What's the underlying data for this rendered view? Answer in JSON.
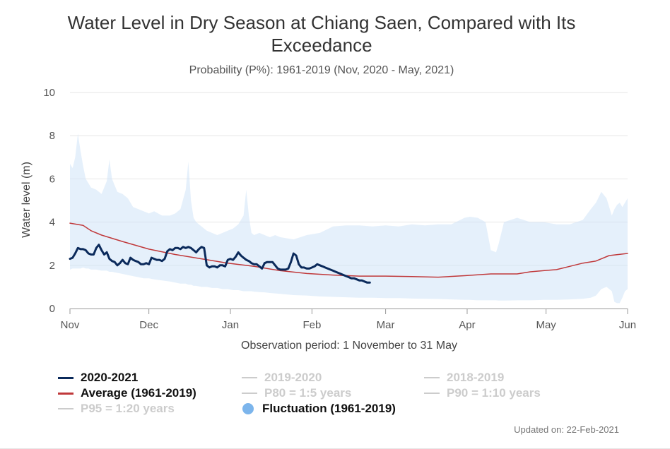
{
  "chart_data": {
    "type": "line",
    "title": "Water Level in Dry Season at Chiang Saen, Compared with Its Exceedance",
    "subtitle": "Probability (P%): 1961-2019 (Nov, 2020 - May, 2021)",
    "xlabel": "Observation period: 1 November to 31 May",
    "ylabel": "Water level (m)",
    "x_ticks": [
      "Nov",
      "Dec",
      "Jan",
      "Feb",
      "Mar",
      "Apr",
      "May",
      "Jun"
    ],
    "x_tick_days": [
      0,
      30,
      61,
      92,
      120,
      151,
      181,
      212
    ],
    "xlim": [
      0,
      212
    ],
    "y_ticks": [
      "0",
      "2",
      "4",
      "6",
      "8",
      "10"
    ],
    "ylim": [
      0,
      10
    ],
    "grid": true,
    "series": [
      {
        "name": "2020-2021",
        "color": "#0b2a5b",
        "x": [
          0,
          1,
          2,
          3,
          4,
          5,
          6,
          7,
          8,
          9,
          10,
          11,
          12,
          13,
          14,
          15,
          16,
          17,
          18,
          19,
          20,
          21,
          22,
          23,
          24,
          25,
          26,
          27,
          28,
          29,
          30,
          31,
          32,
          33,
          34,
          35,
          36,
          37,
          38,
          39,
          40,
          41,
          42,
          43,
          44,
          45,
          46,
          47,
          48,
          49,
          50,
          51,
          52,
          53,
          54,
          55,
          56,
          57,
          58,
          59,
          60,
          61,
          62,
          63,
          64,
          65,
          66,
          67,
          68,
          69,
          70,
          71,
          72,
          73,
          74,
          75,
          76,
          77,
          78,
          79,
          80,
          81,
          82,
          83,
          84,
          85,
          86,
          87,
          88,
          89,
          90,
          91,
          92,
          93,
          94,
          95,
          96,
          97,
          98,
          99,
          100,
          101,
          102,
          103,
          104,
          105,
          106,
          107,
          108,
          109,
          110,
          111,
          112,
          113,
          114
        ],
        "values": [
          2.3,
          2.35,
          2.55,
          2.8,
          2.75,
          2.75,
          2.7,
          2.55,
          2.5,
          2.5,
          2.8,
          2.95,
          2.7,
          2.5,
          2.6,
          2.3,
          2.2,
          2.15,
          2.0,
          2.1,
          2.25,
          2.1,
          2.05,
          2.35,
          2.25,
          2.2,
          2.15,
          2.05,
          2.05,
          2.1,
          2.05,
          2.35,
          2.3,
          2.25,
          2.25,
          2.2,
          2.3,
          2.65,
          2.75,
          2.7,
          2.8,
          2.8,
          2.75,
          2.85,
          2.8,
          2.85,
          2.8,
          2.7,
          2.6,
          2.75,
          2.85,
          2.8,
          2.0,
          1.9,
          1.95,
          1.95,
          1.9,
          2.0,
          2.0,
          1.95,
          2.25,
          2.3,
          2.25,
          2.4,
          2.6,
          2.45,
          2.35,
          2.25,
          2.2,
          2.1,
          2.05,
          2.05,
          1.95,
          1.85,
          2.1,
          2.15,
          2.15,
          2.15,
          2.0,
          1.85,
          1.8,
          1.8,
          1.8,
          1.85,
          2.15,
          2.55,
          2.45,
          2.05,
          1.9,
          1.9,
          1.85,
          1.85,
          1.9,
          1.95,
          2.05,
          2.0,
          1.95,
          1.9,
          1.85,
          1.8,
          1.75,
          1.7,
          1.65,
          1.6,
          1.55,
          1.5,
          1.45,
          1.4,
          1.4,
          1.35,
          1.3,
          1.3,
          1.25,
          1.2,
          1.2
        ]
      },
      {
        "name": "Average (1961-2019)",
        "color": "#c0393b",
        "x": [
          0,
          5,
          8,
          12,
          20,
          30,
          40,
          50,
          60,
          70,
          80,
          90,
          100,
          110,
          120,
          130,
          140,
          150,
          160,
          170,
          175,
          180,
          185,
          190,
          195,
          200,
          205,
          212
        ],
        "values": [
          3.95,
          3.85,
          3.6,
          3.4,
          3.1,
          2.75,
          2.5,
          2.3,
          2.1,
          1.95,
          1.75,
          1.62,
          1.55,
          1.5,
          1.5,
          1.48,
          1.45,
          1.52,
          1.6,
          1.6,
          1.7,
          1.75,
          1.8,
          1.95,
          2.1,
          2.2,
          2.45,
          2.55
        ]
      },
      {
        "name": "2019-2020",
        "visible": false
      },
      {
        "name": "2018-2019",
        "visible": false
      },
      {
        "name": "P80 = 1:5 years",
        "visible": false
      },
      {
        "name": "P90 = 1:10 years",
        "visible": false
      },
      {
        "name": "P95 = 1:20 years",
        "visible": false
      }
    ],
    "band": {
      "name": "Fluctuation (1961-2019)",
      "color": "#cfe3f7",
      "legend_color": "#7cb5ec",
      "x": [
        0,
        1,
        2,
        3,
        4,
        5,
        6,
        7,
        8,
        10,
        12,
        14,
        15,
        16,
        18,
        20,
        22,
        24,
        26,
        28,
        30,
        32,
        35,
        38,
        40,
        42,
        44,
        45,
        46,
        47,
        48,
        50,
        52,
        54,
        56,
        58,
        60,
        62,
        64,
        66,
        67,
        68,
        69,
        70,
        72,
        74,
        76,
        78,
        80,
        85,
        90,
        95,
        100,
        105,
        110,
        115,
        120,
        125,
        130,
        135,
        140,
        145,
        150,
        152,
        155,
        158,
        160,
        162,
        163,
        165,
        170,
        175,
        180,
        185,
        190,
        195,
        198,
        200,
        202,
        204,
        206,
        207,
        208,
        209,
        210,
        211,
        212
      ],
      "upper": [
        6.7,
        6.5,
        7.0,
        8.1,
        7.3,
        6.6,
        6.0,
        5.8,
        5.6,
        5.5,
        5.3,
        5.9,
        6.9,
        6.0,
        5.4,
        5.3,
        5.1,
        4.7,
        4.6,
        4.5,
        4.4,
        4.5,
        4.3,
        4.3,
        4.4,
        4.6,
        5.5,
        6.8,
        5.0,
        4.2,
        4.0,
        3.8,
        3.6,
        3.5,
        3.4,
        3.5,
        3.6,
        3.7,
        3.9,
        4.3,
        5.5,
        4.3,
        3.5,
        3.4,
        3.5,
        3.4,
        3.3,
        3.4,
        3.3,
        3.2,
        3.4,
        3.5,
        3.8,
        3.85,
        3.85,
        3.8,
        3.85,
        3.8,
        3.9,
        3.85,
        3.9,
        3.9,
        4.2,
        4.25,
        4.2,
        4.0,
        2.7,
        2.6,
        3.0,
        4.0,
        4.2,
        4.0,
        4.0,
        3.9,
        3.9,
        4.1,
        4.6,
        4.9,
        5.4,
        5.1,
        4.3,
        4.6,
        4.8,
        4.9,
        4.7,
        4.9,
        5.1
      ],
      "lower": [
        1.8,
        1.85,
        1.85,
        1.85,
        1.85,
        1.9,
        1.85,
        1.85,
        1.8,
        1.8,
        1.75,
        1.75,
        1.7,
        1.7,
        1.65,
        1.6,
        1.55,
        1.5,
        1.45,
        1.4,
        1.4,
        1.35,
        1.3,
        1.25,
        1.2,
        1.15,
        1.15,
        1.1,
        1.1,
        1.05,
        1.05,
        1.0,
        1.0,
        0.95,
        0.95,
        0.9,
        0.9,
        0.85,
        0.85,
        0.8,
        0.8,
        0.8,
        0.8,
        0.78,
        0.76,
        0.75,
        0.72,
        0.7,
        0.68,
        0.62,
        0.6,
        0.56,
        0.54,
        0.52,
        0.5,
        0.5,
        0.48,
        0.48,
        0.46,
        0.45,
        0.44,
        0.42,
        0.4,
        0.4,
        0.38,
        0.38,
        0.38,
        0.38,
        0.37,
        0.37,
        0.38,
        0.38,
        0.4,
        0.4,
        0.42,
        0.45,
        0.5,
        0.6,
        0.9,
        1.0,
        0.8,
        0.3,
        0.25,
        0.25,
        0.5,
        0.8,
        0.9
      ]
    }
  },
  "legend": {
    "items": [
      {
        "label": "2020-2021",
        "active": true,
        "color": "#0b2a5b",
        "symbol": "line"
      },
      {
        "label": "2019-2020",
        "active": false,
        "color": "#cccccc",
        "symbol": "line"
      },
      {
        "label": "2018-2019",
        "active": false,
        "color": "#cccccc",
        "symbol": "line"
      },
      {
        "label": "Average (1961-2019)",
        "active": true,
        "color": "#c0393b",
        "symbol": "line"
      },
      {
        "label": "P80 = 1:5 years",
        "active": false,
        "color": "#cccccc",
        "symbol": "line"
      },
      {
        "label": "P90 = 1:10 years",
        "active": false,
        "color": "#cccccc",
        "symbol": "line"
      },
      {
        "label": "P95 = 1:20 years",
        "active": false,
        "color": "#cccccc",
        "symbol": "line"
      },
      {
        "label": "Fluctuation (1961-2019)",
        "active": true,
        "color": "#7cb5ec",
        "symbol": "dot"
      }
    ]
  },
  "footer": {
    "updated": "Updated on: 22-Feb-2021"
  }
}
